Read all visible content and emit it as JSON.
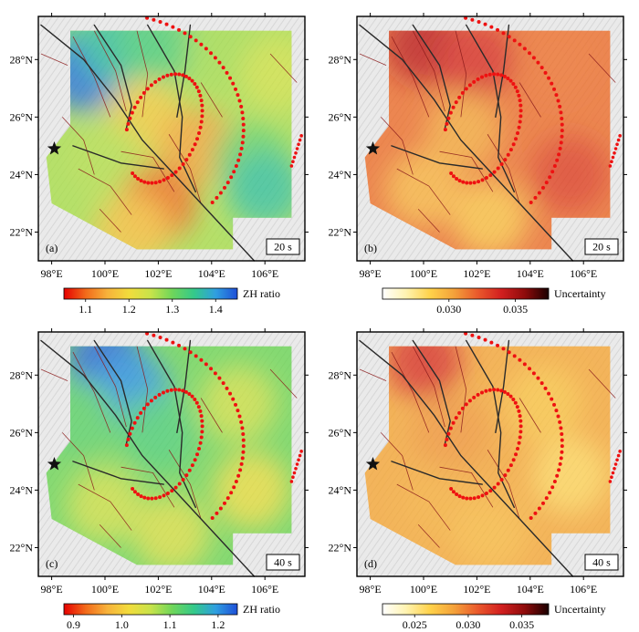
{
  "colors": {
    "zh_ramp": [
      "#e60000",
      "#f26a1a",
      "#f7b23b",
      "#f2dc3c",
      "#c8e34a",
      "#6fd65a",
      "#34c98a",
      "#2f9fe0",
      "#1e4fd8"
    ],
    "unc_ramp": [
      "#ffffff",
      "#fff3b0",
      "#ffd24a",
      "#f4a23a",
      "#ea5a2c",
      "#d21f1f",
      "#8e0b0b",
      "#1a0000"
    ],
    "arc_dots": "#ee1111",
    "fault_major": "#2a2a2a",
    "fault_minor": "#8a1a1a",
    "star": "#111111"
  },
  "chart_data": [
    {
      "type": "heatmap",
      "panel": "(a)",
      "period": "20 s",
      "metric": "ZH ratio",
      "xticks": [
        "98°E",
        "100°E",
        "102°E",
        "104°E",
        "106°E"
      ],
      "yticks": [
        "28°N",
        "26°N",
        "24°N",
        "22°N"
      ],
      "xlim": [
        97.5,
        107.5
      ],
      "ylim": [
        21.0,
        29.5
      ],
      "colorbar": {
        "label": "ZH ratio",
        "range": [
          1.05,
          1.45
        ],
        "ticks": [
          "1.1",
          "1.2",
          "1.3",
          "1.4"
        ]
      },
      "field_samples": [
        {
          "lon": 99.0,
          "lat": 28.5,
          "value": 1.32
        },
        {
          "lon": 99.2,
          "lat": 27.5,
          "value": 1.43
        },
        {
          "lon": 100.5,
          "lat": 28.5,
          "value": 1.36
        },
        {
          "lon": 102.0,
          "lat": 28.5,
          "value": 1.33
        },
        {
          "lon": 104.5,
          "lat": 28.3,
          "value": 1.27
        },
        {
          "lon": 106.5,
          "lat": 27.5,
          "value": 1.24
        },
        {
          "lon": 101.5,
          "lat": 26.0,
          "value": 1.18
        },
        {
          "lon": 103.5,
          "lat": 25.0,
          "value": 1.14
        },
        {
          "lon": 105.5,
          "lat": 24.5,
          "value": 1.31
        },
        {
          "lon": 106.0,
          "lat": 23.5,
          "value": 1.36
        },
        {
          "lon": 100.0,
          "lat": 24.5,
          "value": 1.26
        },
        {
          "lon": 102.0,
          "lat": 23.0,
          "value": 1.1
        },
        {
          "lon": 101.0,
          "lat": 22.0,
          "value": 1.17
        }
      ]
    },
    {
      "type": "heatmap",
      "panel": "(b)",
      "period": "20 s",
      "metric": "Uncertainty",
      "xticks": [
        "98°E",
        "100°E",
        "102°E",
        "104°E",
        "106°E"
      ],
      "yticks": [
        "28°N",
        "26°N",
        "24°N",
        "22°N"
      ],
      "xlim": [
        97.5,
        107.5
      ],
      "ylim": [
        21.0,
        29.5
      ],
      "colorbar": {
        "label": "Uncertainty",
        "range": [
          0.025,
          0.0375
        ],
        "ticks": [
          "0.030",
          "0.035"
        ]
      },
      "field_samples": [
        {
          "lon": 100.0,
          "lat": 28.5,
          "value": 0.0345
        },
        {
          "lon": 102.0,
          "lat": 28.0,
          "value": 0.0335
        },
        {
          "lon": 105.0,
          "lat": 28.0,
          "value": 0.0315
        },
        {
          "lon": 101.5,
          "lat": 25.5,
          "value": 0.03
        },
        {
          "lon": 100.0,
          "lat": 23.5,
          "value": 0.0295
        },
        {
          "lon": 105.5,
          "lat": 24.0,
          "value": 0.033
        },
        {
          "lon": 102.5,
          "lat": 22.5,
          "value": 0.029
        }
      ]
    },
    {
      "type": "heatmap",
      "panel": "(c)",
      "period": "40 s",
      "metric": "ZH ratio",
      "xticks": [
        "98°E",
        "100°E",
        "102°E",
        "104°E",
        "106°E"
      ],
      "yticks": [
        "28°N",
        "26°N",
        "24°N",
        "22°N"
      ],
      "xlim": [
        97.5,
        107.5
      ],
      "ylim": [
        21.0,
        29.5
      ],
      "colorbar": {
        "label": "ZH ratio",
        "range": [
          0.88,
          1.24
        ],
        "ticks": [
          "0.9",
          "1.0",
          "1.1",
          "1.2"
        ]
      },
      "field_samples": [
        {
          "lon": 100.0,
          "lat": 28.5,
          "value": 1.23
        },
        {
          "lon": 101.0,
          "lat": 27.5,
          "value": 1.2
        },
        {
          "lon": 99.0,
          "lat": 26.5,
          "value": 1.12
        },
        {
          "lon": 102.0,
          "lat": 26.0,
          "value": 1.13
        },
        {
          "lon": 105.0,
          "lat": 27.0,
          "value": 1.05
        },
        {
          "lon": 105.5,
          "lat": 24.0,
          "value": 1.02
        },
        {
          "lon": 100.0,
          "lat": 23.5,
          "value": 1.05
        },
        {
          "lon": 102.5,
          "lat": 22.5,
          "value": 1.04
        }
      ]
    },
    {
      "type": "heatmap",
      "panel": "(d)",
      "period": "40 s",
      "metric": "Uncertainty",
      "xticks": [
        "98°E",
        "100°E",
        "102°E",
        "104°E",
        "106°E"
      ],
      "yticks": [
        "28°N",
        "26°N",
        "24°N",
        "22°N"
      ],
      "xlim": [
        97.5,
        107.5
      ],
      "ylim": [
        21.0,
        29.5
      ],
      "colorbar": {
        "label": "Uncertainty",
        "range": [
          0.022,
          0.0375
        ],
        "ticks": [
          "0.025",
          "0.030",
          "0.035"
        ]
      },
      "field_samples": [
        {
          "lon": 100.0,
          "lat": 28.5,
          "value": 0.0325
        },
        {
          "lon": 101.0,
          "lat": 26.0,
          "value": 0.029
        },
        {
          "lon": 104.5,
          "lat": 27.0,
          "value": 0.027
        },
        {
          "lon": 100.5,
          "lat": 23.5,
          "value": 0.028
        },
        {
          "lon": 105.5,
          "lat": 24.5,
          "value": 0.026
        },
        {
          "lon": 102.5,
          "lat": 22.5,
          "value": 0.0275
        }
      ]
    }
  ]
}
